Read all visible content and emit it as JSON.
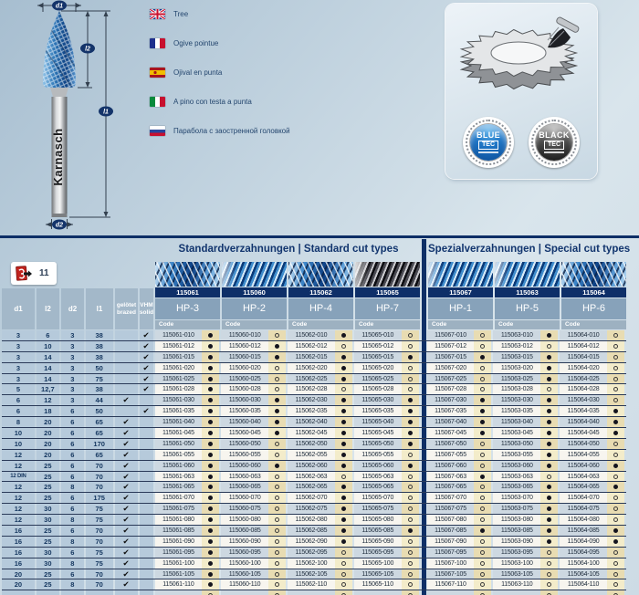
{
  "diagram": {
    "labels": {
      "d1": "d1",
      "l2": "l2",
      "l1": "l1",
      "d2": "d2"
    },
    "brand": "Karnasch"
  },
  "languages": [
    {
      "flag": "uk",
      "label": "Tree"
    },
    {
      "flag": "fr",
      "label": "Ogive pointue"
    },
    {
      "flag": "es",
      "label": "Ojival en punta"
    },
    {
      "flag": "it",
      "label": "A pino con testa a punta"
    },
    {
      "flag": "ru",
      "label": "Парабола с заостренной головкой"
    }
  ],
  "badges": [
    {
      "line1": "BLUE",
      "line2": "TEC",
      "style": "blue"
    },
    {
      "line1": "BLACK",
      "line2": "TEC",
      "style": "black"
    }
  ],
  "reference": {
    "page_number": "11"
  },
  "colors": {
    "navy": "#0e2f68",
    "dim_cell": "#b6cadb",
    "cream": "#e8dcb2",
    "accent_blue": "#1d74c4"
  },
  "table": {
    "section_standard": "Standardverzahnungen | Standard cut types",
    "section_special": "Spezialverzahnungen | Special cut types",
    "code_label": "Code",
    "check_glyph": "✔",
    "headers": {
      "dims": [
        "d1",
        "l2",
        "d2",
        "l1"
      ],
      "brazed": [
        "gelötet",
        "brazed"
      ],
      "vhm": [
        "VHM",
        "solid"
      ]
    },
    "products": [
      {
        "number": "115061",
        "type": "HP-3",
        "section": "standard",
        "texture": "cross"
      },
      {
        "number": "115060",
        "type": "HP-2",
        "section": "standard",
        "texture": "diag"
      },
      {
        "number": "115062",
        "type": "HP-4",
        "section": "standard",
        "texture": "cross"
      },
      {
        "number": "115065",
        "type": "HP-7",
        "section": "standard",
        "texture": "dark"
      },
      {
        "number": "115067",
        "type": "HP-1",
        "section": "special",
        "texture": "diag"
      },
      {
        "number": "115063",
        "type": "HP-5",
        "section": "special",
        "texture": "diag"
      },
      {
        "number": "115064",
        "type": "HP-6",
        "section": "special",
        "texture": "cross"
      }
    ],
    "rows": [
      {
        "dims": [
          "3",
          "6",
          "3",
          "38"
        ],
        "join": "vhm",
        "suffix": "010",
        "avail": [
          1,
          0,
          1,
          0,
          0,
          1,
          0
        ]
      },
      {
        "dims": [
          "3",
          "10",
          "3",
          "38"
        ],
        "join": "vhm",
        "suffix": "012",
        "avail": [
          1,
          1,
          0,
          0,
          0,
          0,
          0
        ]
      },
      {
        "dims": [
          "3",
          "14",
          "3",
          "38"
        ],
        "join": "vhm",
        "suffix": "015",
        "avail": [
          1,
          1,
          1,
          1,
          1,
          1,
          0
        ]
      },
      {
        "dims": [
          "3",
          "14",
          "3",
          "50"
        ],
        "join": "vhm",
        "suffix": "020",
        "avail": [
          1,
          0,
          1,
          0,
          0,
          1,
          0
        ]
      },
      {
        "dims": [
          "3",
          "14",
          "3",
          "75"
        ],
        "join": "vhm",
        "suffix": "025",
        "avail": [
          1,
          0,
          1,
          0,
          0,
          1,
          0
        ]
      },
      {
        "dims": [
          "5",
          "12,7",
          "3",
          "38"
        ],
        "join": "vhm",
        "suffix": "028",
        "avail": [
          1,
          0,
          0,
          0,
          0,
          0,
          0
        ]
      },
      {
        "dims": [
          "6",
          "12",
          "3",
          "44"
        ],
        "join": "brazed",
        "suffix": "030",
        "avail": [
          1,
          1,
          1,
          1,
          1,
          1,
          0
        ]
      },
      {
        "dims": [
          "6",
          "18",
          "6",
          "50"
        ],
        "join": "vhm",
        "suffix": "035",
        "avail": [
          1,
          1,
          1,
          1,
          1,
          1,
          1
        ]
      },
      {
        "dims": [
          "8",
          "20",
          "6",
          "65"
        ],
        "join": "brazed",
        "suffix": "040",
        "avail": [
          1,
          1,
          1,
          1,
          1,
          1,
          1
        ]
      },
      {
        "dims": [
          "10",
          "20",
          "6",
          "65"
        ],
        "join": "brazed",
        "suffix": "045",
        "avail": [
          1,
          1,
          1,
          1,
          1,
          1,
          1
        ]
      },
      {
        "dims": [
          "10",
          "20",
          "6",
          "170"
        ],
        "join": "brazed",
        "suffix": "050",
        "avail": [
          1,
          0,
          1,
          1,
          0,
          1,
          0
        ]
      },
      {
        "dims": [
          "12",
          "20",
          "6",
          "65"
        ],
        "join": "brazed",
        "suffix": "055",
        "avail": [
          1,
          0,
          1,
          0,
          0,
          1,
          0
        ]
      },
      {
        "dims": [
          "12",
          "25",
          "6",
          "70"
        ],
        "join": "brazed",
        "suffix": "060",
        "avail": [
          1,
          1,
          1,
          1,
          0,
          1,
          1
        ]
      },
      {
        "dims": [
          "12 DIN",
          "25",
          "6",
          "70"
        ],
        "join": "brazed",
        "suffix": "063",
        "avail": [
          1,
          0,
          0,
          0,
          1,
          0,
          0
        ]
      },
      {
        "dims": [
          "12",
          "25",
          "8",
          "70"
        ],
        "join": "brazed",
        "suffix": "065",
        "avail": [
          1,
          0,
          1,
          0,
          0,
          1,
          1
        ]
      },
      {
        "dims": [
          "12",
          "25",
          "6",
          "175"
        ],
        "join": "brazed",
        "suffix": "070",
        "avail": [
          1,
          0,
          1,
          0,
          0,
          1,
          0
        ]
      },
      {
        "dims": [
          "12",
          "30",
          "6",
          "75"
        ],
        "join": "brazed",
        "suffix": "075",
        "avail": [
          1,
          0,
          1,
          0,
          0,
          1,
          0
        ]
      },
      {
        "dims": [
          "12",
          "30",
          "8",
          "75"
        ],
        "join": "brazed",
        "suffix": "080",
        "avail": [
          1,
          0,
          1,
          0,
          0,
          1,
          0
        ]
      },
      {
        "dims": [
          "16",
          "25",
          "6",
          "70"
        ],
        "join": "brazed",
        "suffix": "085",
        "avail": [
          1,
          0,
          1,
          1,
          1,
          1,
          1
        ]
      },
      {
        "dims": [
          "16",
          "25",
          "8",
          "70"
        ],
        "join": "brazed",
        "suffix": "090",
        "avail": [
          1,
          0,
          1,
          0,
          0,
          1,
          1
        ]
      },
      {
        "dims": [
          "16",
          "30",
          "6",
          "75"
        ],
        "join": "brazed",
        "suffix": "095",
        "avail": [
          1,
          0,
          0,
          0,
          0,
          0,
          0
        ]
      },
      {
        "dims": [
          "16",
          "30",
          "8",
          "75"
        ],
        "join": "brazed",
        "suffix": "100",
        "avail": [
          1,
          0,
          0,
          0,
          0,
          0,
          0
        ]
      },
      {
        "dims": [
          "20",
          "25",
          "6",
          "70"
        ],
        "join": "brazed",
        "suffix": "105",
        "avail": [
          1,
          0,
          0,
          0,
          0,
          0,
          0
        ]
      },
      {
        "dims": [
          "20",
          "25",
          "8",
          "70"
        ],
        "join": "brazed",
        "suffix": "110",
        "avail": [
          1,
          0,
          0,
          0,
          0,
          0,
          0
        ]
      }
    ]
  }
}
